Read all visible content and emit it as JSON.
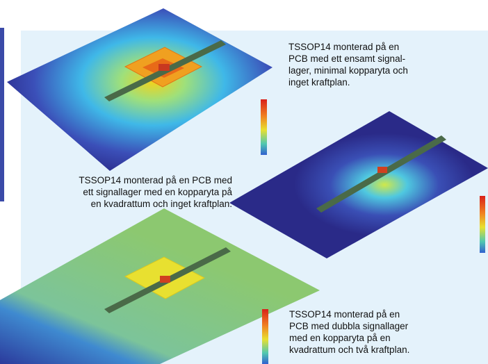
{
  "captions": [
    {
      "lines": [
        "TSSOP14 monterad på en",
        "PCB med ett ensamt signal-",
        "lager, minimal kopparyta och",
        "inget kraftplan."
      ]
    },
    {
      "lines": [
        "TSSOP14 monterad på en PCB med",
        "ett signallager med en kopparyta på",
        "en kvadrattum och inget kraftplan."
      ]
    },
    {
      "lines": [
        "TSSOP14 monterad på en",
        "PCB med dubbla signallager",
        "med en kopparyta på en",
        "kvadrattum och två kraftplan."
      ]
    }
  ]
}
